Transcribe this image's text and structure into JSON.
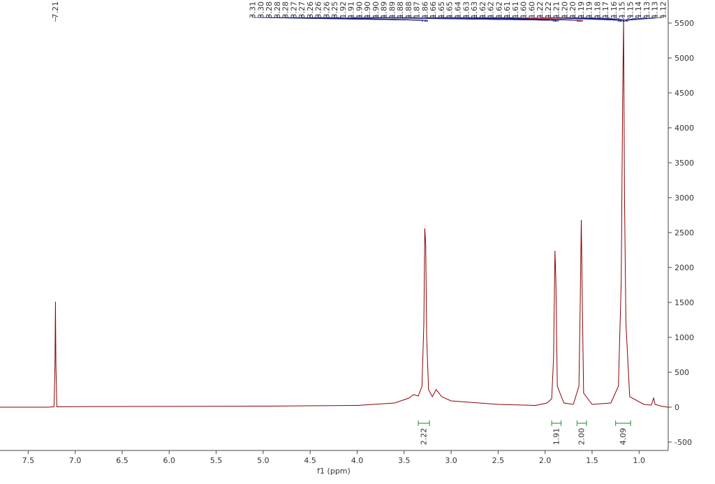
{
  "chart_data": {
    "type": "line",
    "x_label": "f1 (ppm)",
    "color": "#8b0000",
    "xlim": [
      7.8,
      0.69
    ],
    "ylim": [
      -620,
      5830
    ],
    "xticks": [
      7.5,
      {
        "value": 7.0,
        "label": "7.0"
      },
      6.5,
      {
        "value": 6.0,
        "label": "6.0"
      },
      5.5,
      {
        "value": 5.0,
        "label": "5.0"
      },
      4.5,
      {
        "value": 4.0,
        "label": "4.0"
      },
      3.5,
      {
        "value": 3.0,
        "label": "3.0"
      },
      2.5,
      {
        "value": 2.0,
        "label": "2.0"
      },
      1.5,
      {
        "value": 1.0,
        "label": "1.0"
      }
    ],
    "yticks": [
      -500,
      0,
      500,
      1000,
      1500,
      2000,
      2500,
      3000,
      3500,
      4000,
      4500,
      5000,
      5500
    ],
    "x": [
      7.8,
      7.3,
      7.225,
      7.215,
      7.21,
      7.205,
      7.195,
      7.0,
      5.0,
      4.0,
      3.6,
      3.45,
      3.4,
      3.35,
      3.31,
      3.29,
      3.28,
      3.27,
      3.26,
      3.24,
      3.2,
      3.16,
      3.14,
      3.1,
      3.0,
      2.5,
      2.1,
      1.98,
      1.93,
      1.91,
      1.895,
      1.885,
      1.87,
      1.8,
      1.7,
      1.64,
      1.625,
      1.615,
      1.605,
      1.59,
      1.5,
      1.3,
      1.22,
      1.19,
      1.175,
      1.165,
      1.155,
      1.14,
      1.1,
      0.95,
      0.87,
      0.845,
      0.83,
      0.75,
      0.69
    ],
    "values": [
      0,
      0,
      5,
      600,
      1510,
      600,
      5,
      8,
      15,
      25,
      60,
      130,
      180,
      160,
      300,
      1200,
      2560,
      2300,
      1000,
      250,
      150,
      250,
      220,
      150,
      90,
      40,
      25,
      60,
      120,
      700,
      2240,
      1800,
      300,
      60,
      40,
      300,
      1600,
      2680,
      1600,
      200,
      40,
      60,
      300,
      1800,
      4400,
      5550,
      3000,
      1200,
      150,
      40,
      30,
      130,
      40,
      10,
      0
    ],
    "peak_color": "#1a237e",
    "peaks": [
      {
        "value": 7.21,
        "label": "7.21",
        "color": "#e53935"
      },
      {
        "value": 3.31,
        "label": "3.31"
      },
      {
        "value": 3.3,
        "label": "3.30"
      },
      {
        "value": 3.28,
        "label": "3.28"
      },
      {
        "value": 3.28,
        "label": "3.28"
      },
      {
        "value": 3.28,
        "label": "3.28"
      },
      {
        "value": 3.27,
        "label": "3.27"
      },
      {
        "value": 3.27,
        "label": "3.27"
      },
      {
        "value": 3.26,
        "label": "3.26"
      },
      {
        "value": 3.26,
        "label": "3.26"
      },
      {
        "value": 3.26,
        "label": "3.26"
      },
      {
        "value": 3.25,
        "label": "3.25"
      },
      {
        "value": 1.92,
        "label": "1.92",
        "color": "#9e9e9e"
      },
      {
        "value": 1.91,
        "label": "1.91"
      },
      {
        "value": 1.9,
        "label": "1.90"
      },
      {
        "value": 1.9,
        "label": "1.90"
      },
      {
        "value": 1.9,
        "label": "1.90"
      },
      {
        "value": 1.89,
        "label": "1.89"
      },
      {
        "value": 1.89,
        "label": "1.89"
      },
      {
        "value": 1.88,
        "label": "1.88"
      },
      {
        "value": 1.88,
        "label": "1.88"
      },
      {
        "value": 1.87,
        "label": "1.87",
        "color": "#9e9e9e"
      },
      {
        "value": 1.86,
        "label": "1.86"
      },
      {
        "value": 1.66,
        "label": "1.66"
      },
      {
        "value": 1.65,
        "label": "1.65"
      },
      {
        "value": 1.65,
        "label": "1.65"
      },
      {
        "value": 1.64,
        "label": "1.64"
      },
      {
        "value": 1.63,
        "label": "1.63"
      },
      {
        "value": 1.63,
        "label": "1.63"
      },
      {
        "value": 1.62,
        "label": "1.62"
      },
      {
        "value": 1.62,
        "label": "1.62"
      },
      {
        "value": 1.62,
        "label": "1.62"
      },
      {
        "value": 1.61,
        "label": "1.61"
      },
      {
        "value": 1.61,
        "label": "1.61",
        "color": "#e53935"
      },
      {
        "value": 1.6,
        "label": "1.60",
        "color": "#e53935"
      },
      {
        "value": 1.6,
        "label": "1.60",
        "color": "#e53935"
      },
      {
        "value": 1.22,
        "label": "1.22"
      },
      {
        "value": 1.22,
        "label": "1.22"
      },
      {
        "value": 1.21,
        "label": "1.21"
      },
      {
        "value": 1.2,
        "label": "1.20"
      },
      {
        "value": 1.2,
        "label": "1.20"
      },
      {
        "value": 1.19,
        "label": "1.19"
      },
      {
        "value": 1.19,
        "label": "1.19"
      },
      {
        "value": 1.18,
        "label": "1.18"
      },
      {
        "value": 1.17,
        "label": "1.17"
      },
      {
        "value": 1.16,
        "label": "1.16"
      },
      {
        "value": 1.15,
        "label": "1.15"
      },
      {
        "value": 1.15,
        "label": "1.15"
      },
      {
        "value": 1.14,
        "label": "1.14"
      },
      {
        "value": 1.13,
        "label": "1.13"
      },
      {
        "value": 1.13,
        "label": "1.13"
      },
      {
        "value": 1.12,
        "label": "1.12"
      }
    ],
    "integrals": {
      "regions": [
        [
          3.35,
          3.23
        ],
        [
          1.93,
          1.83
        ],
        [
          1.66,
          1.56
        ],
        [
          1.25,
          1.09
        ]
      ],
      "values": [
        2.22,
        1.91,
        2.0,
        4.09
      ],
      "value_labels": [
        "2.22",
        "1.91",
        "2.00",
        "4.09"
      ],
      "color": "#43a047"
    }
  }
}
